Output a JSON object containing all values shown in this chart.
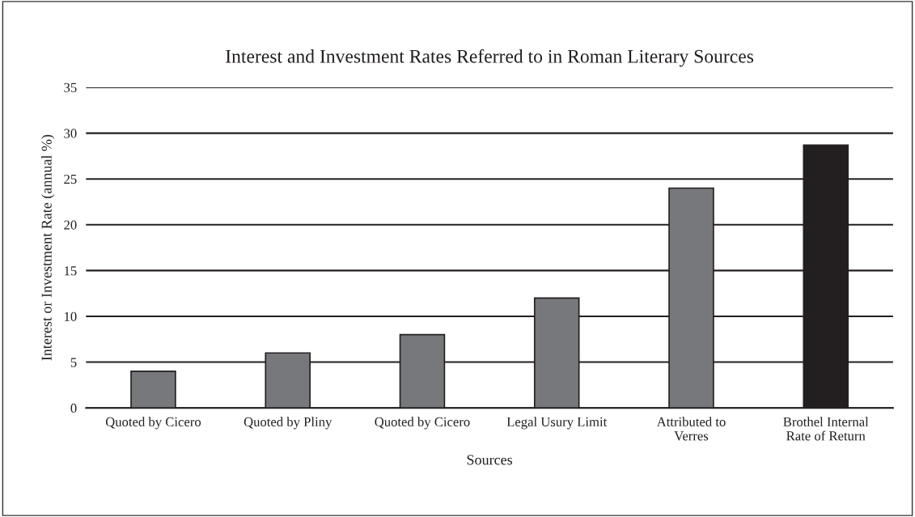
{
  "chart_data": {
    "type": "bar",
    "title": "Interest and Investment Rates Referred to in Roman Literary Sources",
    "xlabel": "Sources",
    "ylabel": "Interest or Investment Rate (annual %)",
    "categories": [
      "Quoted by Cicero",
      "Quoted by Pliny",
      "Quoted by Cicero",
      "Legal Usury Limit",
      "Attributed to\nVerres",
      "Brothel Internal\nRate of Return"
    ],
    "values": [
      4,
      6,
      8,
      12,
      24,
      28.7
    ],
    "colors": [
      "#77787b",
      "#77787b",
      "#77787b",
      "#77787b",
      "#77787b",
      "#231f20"
    ],
    "ylim": [
      0,
      35
    ],
    "yticks": [
      0,
      5,
      10,
      15,
      20,
      25,
      30,
      35
    ],
    "grid": "y",
    "legend": false
  }
}
